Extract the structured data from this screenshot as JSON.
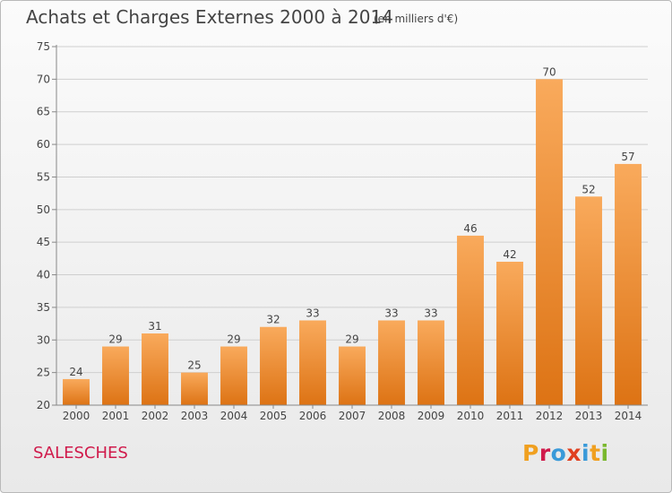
{
  "header": {
    "title": "Achats et Charges Externes 2000 à 2014",
    "subtitle": "(en milliers d'€)"
  },
  "footer": {
    "commune": "SALESCHES",
    "logo_text": "Proxiti",
    "logo_colors": [
      "#f0a020",
      "#d01a4b",
      "#3a9ad9",
      "#e04020",
      "#3a9ad9",
      "#f0a020",
      "#7ab82e"
    ]
  },
  "colors": {
    "bar_top": "#f9aa5c",
    "bar_bottom": "#dd7314",
    "grid": "#cfcfcf",
    "commune": "#d01a4b"
  },
  "chart_data": {
    "type": "bar",
    "categories": [
      "2000",
      "2001",
      "2002",
      "2003",
      "2004",
      "2005",
      "2006",
      "2007",
      "2008",
      "2009",
      "2010",
      "2011",
      "2012",
      "2013",
      "2014"
    ],
    "values": [
      24,
      29,
      31,
      25,
      29,
      32,
      33,
      29,
      33,
      33,
      46,
      42,
      70,
      52,
      57
    ],
    "ylim": [
      20,
      75
    ],
    "yticks": [
      20,
      25,
      30,
      35,
      40,
      45,
      50,
      55,
      60,
      65,
      70,
      75
    ],
    "grid": true,
    "data_labels": true
  }
}
